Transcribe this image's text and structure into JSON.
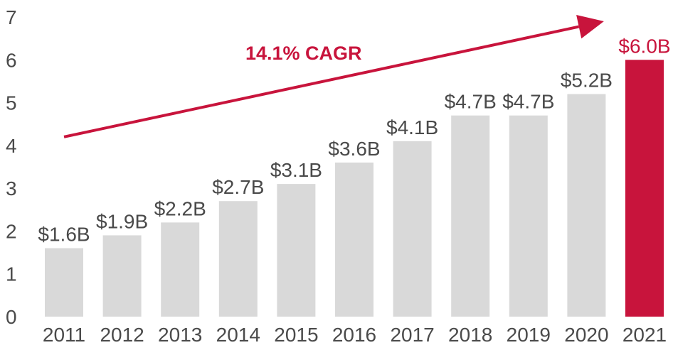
{
  "colors": {
    "bar": "#d9d9d9",
    "highlight": "#c8143c",
    "text": "#4a4a4a",
    "accent": "#c8143c"
  },
  "chart_data": {
    "type": "bar",
    "title": "",
    "xlabel": "",
    "ylabel": "",
    "ylim": [
      0,
      7
    ],
    "yticks": [
      "0",
      "1",
      "2",
      "3",
      "4",
      "5",
      "6",
      "7"
    ],
    "categories": [
      "2011",
      "2012",
      "2013",
      "2014",
      "2015",
      "2016",
      "2017",
      "2018",
      "2019",
      "2020",
      "2021"
    ],
    "values": [
      1.6,
      1.9,
      2.2,
      2.7,
      3.1,
      3.6,
      4.1,
      4.7,
      4.7,
      5.2,
      6.0
    ],
    "data_labels": [
      "$1.6B",
      "$1.9B",
      "$2.2B",
      "$2.7B",
      "$3.1B",
      "$3.6B",
      "$4.1B",
      "$4.7B",
      "$4.7B",
      "$5.2B",
      "$6.0B"
    ],
    "highlight_index": 10,
    "grid": false,
    "annotation": {
      "text": "14.1% CAGR",
      "arrow_start": [
        2011,
        4.2
      ],
      "arrow_end": [
        2020.3,
        6.9
      ]
    }
  }
}
